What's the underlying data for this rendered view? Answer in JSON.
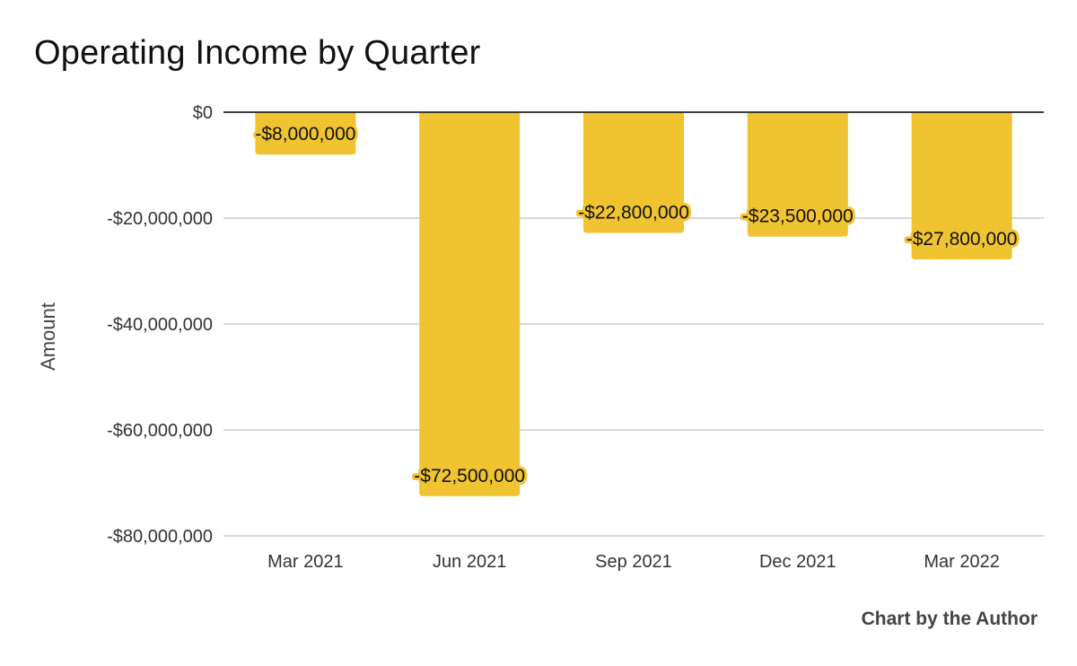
{
  "title": "Operating Income by Quarter",
  "credit": "Chart by the Author",
  "chart_data": {
    "type": "bar",
    "title": "Operating Income by Quarter",
    "xlabel": "",
    "ylabel": "Amount",
    "categories": [
      "Mar 2021",
      "Jun 2021",
      "Sep 2021",
      "Dec 2021",
      "Mar 2022"
    ],
    "values": [
      -8000000,
      -72500000,
      -22800000,
      -23500000,
      -27800000
    ],
    "data_labels": [
      "-$8,000,000",
      "-$72,500,000",
      "-$22,800,000",
      "-$23,500,000",
      "-$27,800,000"
    ],
    "ylim": [
      -80000000,
      0
    ],
    "yticks": [
      0,
      -20000000,
      -40000000,
      -60000000,
      -80000000
    ],
    "ytick_labels": [
      "$0",
      "-$20,000,000",
      "-$40,000,000",
      "-$60,000,000",
      "-$80,000,000"
    ],
    "grid": true,
    "legend": "none",
    "bar_color": "#f0c330"
  }
}
